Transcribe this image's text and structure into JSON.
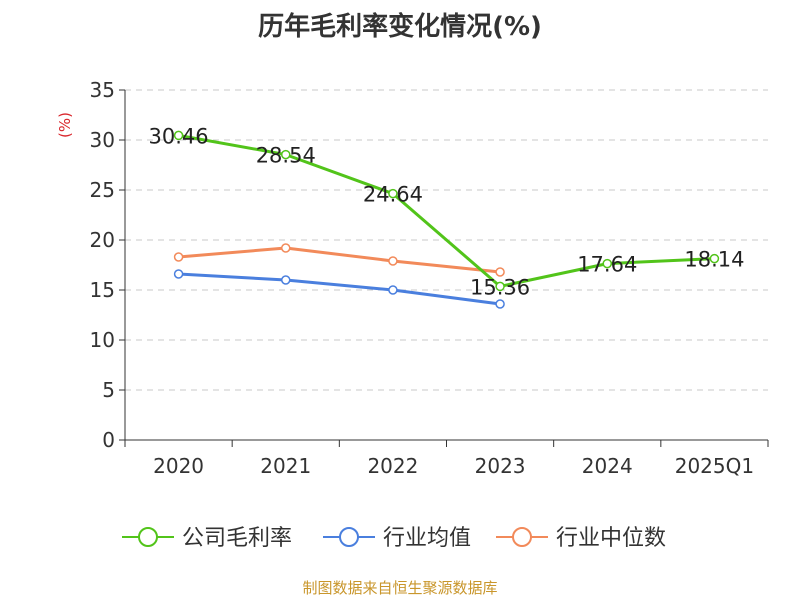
{
  "chart_data": {
    "type": "line",
    "title": "历年毛利率变化情况(%)",
    "ylabel": "(%)",
    "xlabel": "",
    "categories": [
      "2020",
      "2021",
      "2022",
      "2023",
      "2024",
      "2025Q1"
    ],
    "ylim": [
      0,
      35
    ],
    "yticks": [
      0,
      5,
      10,
      15,
      20,
      25,
      30,
      35
    ],
    "grid": true,
    "legend_position": "bottom",
    "series": [
      {
        "name": "公司毛利率",
        "color": "#52c41a",
        "values": [
          30.46,
          28.54,
          24.64,
          15.36,
          17.64,
          18.14
        ],
        "labels": [
          "30.46",
          "28.54",
          "24.64",
          "15.36",
          "17.64",
          "18.14"
        ]
      },
      {
        "name": "行业均值",
        "color": "#4a7fde",
        "values": [
          16.6,
          16.0,
          15.0,
          13.6,
          null,
          null
        ]
      },
      {
        "name": "行业中位数",
        "color": "#f28a5a",
        "values": [
          18.3,
          19.2,
          17.9,
          16.8,
          null,
          null
        ]
      }
    ]
  },
  "footer": "制图数据来自恒生聚源数据库"
}
